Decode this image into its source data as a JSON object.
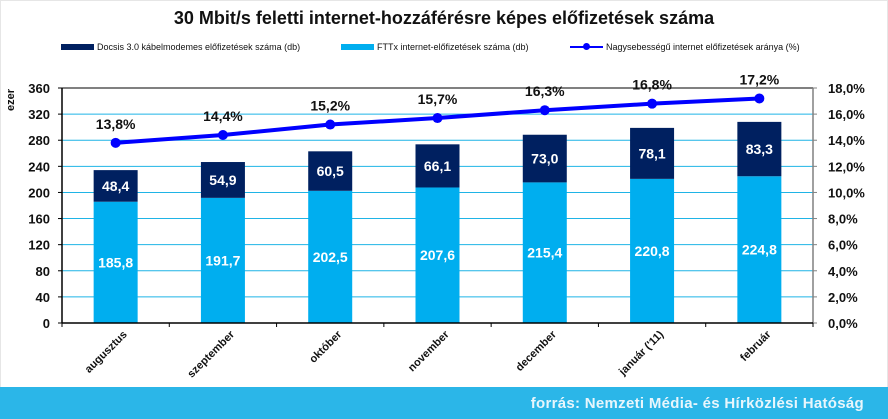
{
  "chart_data": {
    "type": "bar",
    "stacked": true,
    "title": "30 Mbit/s feletti internet-hozzáférésre képes előfizetések száma",
    "ylabel": "ezer",
    "ylabel_right": "",
    "xlabel": "",
    "categories": [
      "augusztus",
      "szeptember",
      "október",
      "november",
      "december",
      "január ('11)",
      "február"
    ],
    "ylim": [
      0,
      360
    ],
    "yticks": [
      0,
      40,
      80,
      120,
      160,
      200,
      240,
      280,
      320,
      360
    ],
    "ylim_right": [
      0,
      18
    ],
    "yticks_right": [
      "0,0%",
      "2,0%",
      "4,0%",
      "6,0%",
      "8,0%",
      "10,0%",
      "12,0%",
      "14,0%",
      "16,0%",
      "18,0%"
    ],
    "grid": true,
    "legend_position": "top",
    "series": [
      {
        "name": "FTTx  internet-előfizetések száma (db)",
        "kind": "bar",
        "color": "#00aeef",
        "values": [
          185.8,
          191.7,
          202.5,
          207.6,
          215.4,
          220.8,
          224.8
        ],
        "labels": [
          "185,8",
          "191,7",
          "202,5",
          "207,6",
          "215,4",
          "220,8",
          "224,8"
        ]
      },
      {
        "name": "Docsis 3.0 kábelmodemes előfizetések száma (db)",
        "kind": "bar",
        "color": "#002060",
        "values": [
          48.4,
          54.9,
          60.5,
          66.1,
          73.0,
          78.1,
          83.3
        ],
        "labels": [
          "48,4",
          "54,9",
          "60,5",
          "66,1",
          "73,0",
          "78,1",
          "83,3"
        ]
      },
      {
        "name": "Nagysebességű internet előfizetések aránya (%)",
        "kind": "line",
        "axis": "right",
        "color": "#0000ff",
        "values": [
          13.8,
          14.4,
          15.2,
          15.7,
          16.3,
          16.8,
          17.2
        ],
        "labels": [
          "13,8%",
          "14,4%",
          "15,2%",
          "15,7%",
          "16,3%",
          "16,8%",
          "17,2%"
        ]
      }
    ]
  },
  "legend": [
    {
      "label": "Docsis 3.0 kábelmodemes előfizetések száma (db)",
      "color": "#002060",
      "kind": "bar"
    },
    {
      "label": "FTTx  internet-előfizetések száma (db)",
      "color": "#00aeef",
      "kind": "bar"
    },
    {
      "label": "Nagysebességű internet előfizetések aránya (%)",
      "color": "#0000ff",
      "kind": "line"
    }
  ],
  "footer": {
    "source": "forrás: Nemzeti Média- és Hírközlési Hatóság",
    "color": "#2bb6e8"
  }
}
